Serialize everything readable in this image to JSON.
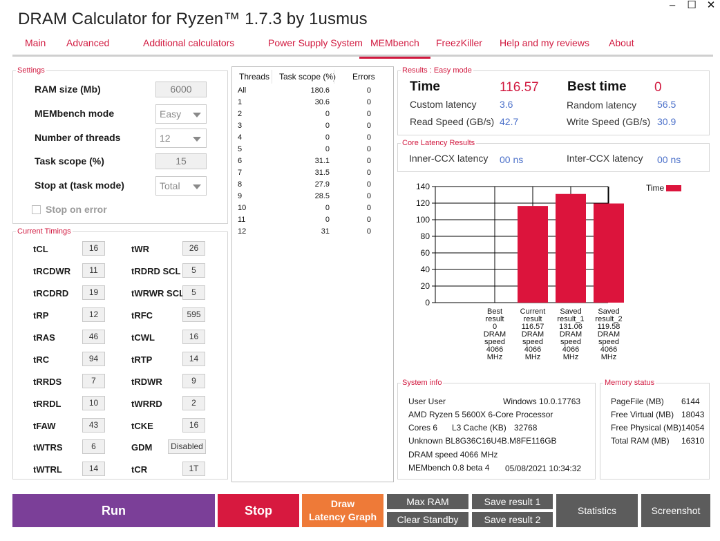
{
  "window": {
    "minimize": "–",
    "maximize": "☐",
    "close": "✕"
  },
  "title": "DRAM Calculator for Ryzen™ 1.7.3 by 1usmus",
  "tabs": [
    "Main",
    "Advanced",
    "Additional calculators",
    "Power Supply System",
    "MEMbench",
    "FreezKiller",
    "Help and my reviews",
    "About"
  ],
  "settings": {
    "legend": "Settings",
    "ram_size_label": "RAM size (Mb)",
    "ram_size_value": "6000",
    "mode_label": "MEMbench mode",
    "mode_value": "Easy",
    "threads_label": "Number of threads",
    "threads_value": "12",
    "scope_label": "Task scope (%)",
    "scope_value": "15",
    "stop_label": "Stop at (task mode)",
    "stop_value": "Total",
    "stop_on_error": "Stop on error"
  },
  "timings": {
    "legend": "Current Timings",
    "left": [
      {
        "name": "tCL",
        "value": "16"
      },
      {
        "name": "tRCDWR",
        "value": "11"
      },
      {
        "name": "tRCDRD",
        "value": "19"
      },
      {
        "name": "tRP",
        "value": "12"
      },
      {
        "name": "tRAS",
        "value": "46"
      },
      {
        "name": "tRC",
        "value": "94"
      },
      {
        "name": "tRRDS",
        "value": "7"
      },
      {
        "name": "tRRDL",
        "value": "10"
      },
      {
        "name": "tFAW",
        "value": "43"
      },
      {
        "name": "tWTRS",
        "value": "6"
      },
      {
        "name": "tWTRL",
        "value": "14"
      }
    ],
    "right": [
      {
        "name": "tWR",
        "value": "26"
      },
      {
        "name": "tRDRD SCL",
        "value": "5"
      },
      {
        "name": "tWRWR SCL",
        "value": "5"
      },
      {
        "name": "tRFC",
        "value": "595"
      },
      {
        "name": "tCWL",
        "value": "16"
      },
      {
        "name": "tRTP",
        "value": "14"
      },
      {
        "name": "tRDWR",
        "value": "9"
      },
      {
        "name": "tWRRD",
        "value": "2"
      },
      {
        "name": "tCKE",
        "value": "16"
      },
      {
        "name": "GDM",
        "value": "Disabled"
      },
      {
        "name": "tCR",
        "value": "1T"
      }
    ]
  },
  "threads_table": {
    "headers": [
      "Threads",
      "Task scope (%)",
      "Errors"
    ],
    "rows": [
      [
        "All",
        "180.6",
        "0"
      ],
      [
        "1",
        "30.6",
        "0"
      ],
      [
        "2",
        "0",
        "0"
      ],
      [
        "3",
        "0",
        "0"
      ],
      [
        "4",
        "0",
        "0"
      ],
      [
        "5",
        "0",
        "0"
      ],
      [
        "6",
        "31.1",
        "0"
      ],
      [
        "7",
        "31.5",
        "0"
      ],
      [
        "8",
        "27.9",
        "0"
      ],
      [
        "9",
        "28.5",
        "0"
      ],
      [
        "10",
        "0",
        "0"
      ],
      [
        "11",
        "0",
        "0"
      ],
      [
        "12",
        "31",
        "0"
      ]
    ]
  },
  "results": {
    "legend": "Results : Easy mode",
    "time_label": "Time",
    "time_value": "116.57",
    "best_label": "Best time",
    "best_value": "0",
    "custom_label": "Custom latency",
    "custom_value": "3.6",
    "random_label": "Random latency",
    "random_value": "56.5",
    "read_label": "Read Speed (GB/s)",
    "read_value": "42.7",
    "write_label": "Write Speed (GB/s)",
    "write_value": "30.9"
  },
  "core_latency": {
    "legend": "Core Latency Results",
    "inner_label": "Inner-CCX latency",
    "inner_value": "00 ns",
    "inter_label": "Inter-CCX latency",
    "inter_value": "00 ns"
  },
  "chart_data": {
    "type": "bar",
    "categories": [
      [
        "Best",
        "result",
        "0",
        "DRAM",
        "speed",
        "4066",
        "MHz"
      ],
      [
        "Current",
        "result",
        "116.57",
        "DRAM",
        "speed",
        "4066",
        "MHz"
      ],
      [
        "Saved",
        "result_1",
        "131.06",
        "DRAM",
        "speed",
        "4066",
        "MHz"
      ],
      [
        "Saved",
        "result_2",
        "119.58",
        "DRAM",
        "speed",
        "4066",
        "MHz"
      ]
    ],
    "series": [
      {
        "name": "Time",
        "values": [
          0,
          116.57,
          131.06,
          119.58
        ],
        "color": "#dc143c"
      }
    ],
    "ylim": [
      0,
      140
    ],
    "yticks": [
      "0",
      "20",
      "40",
      "60",
      "80",
      "100",
      "120",
      "140"
    ],
    "grid": true,
    "legend_position": "top-right"
  },
  "system_info": {
    "legend": "System info",
    "user": "User User",
    "os": "Windows 10.0.17763",
    "cpu": "AMD Ryzen 5 5600X 6-Core Processor",
    "cores": "Cores 6",
    "l3_label": "L3 Cache (KB)",
    "l3_value": "32768",
    "memory": "Unknown BL8G36C16U4B.M8FE116GB",
    "dram_speed": "DRAM speed 4066 MHz",
    "version": "MEMbench 0.8 beta 4",
    "datetime": "05/08/2021 10:34:32"
  },
  "memory_status": {
    "legend": "Memory status",
    "rows": [
      {
        "label": "PageFile (MB)",
        "value": "6144"
      },
      {
        "label": "Free Virtual (MB)",
        "value": "18043"
      },
      {
        "label": "Free Physical (MB)",
        "value": "14054"
      },
      {
        "label": "Total RAM (MB)",
        "value": "16310"
      }
    ]
  },
  "buttons": {
    "run": "Run",
    "stop": "Stop",
    "draw_line1": "Draw",
    "draw_line2": "Latency Graph",
    "max_ram": "Max RAM",
    "clear_standby": "Clear Standby",
    "save1": "Save result 1",
    "save2": "Save result 2",
    "statistics": "Statistics",
    "screenshot": "Screenshot"
  },
  "colors": {
    "accent": "#d1193f",
    "bar": "#dc143c",
    "run": "#7b3f98",
    "stop": "#d7193f",
    "draw": "#ee7a38",
    "gray_button": "#5c5c5c",
    "blue_value": "#4a6fc9"
  }
}
